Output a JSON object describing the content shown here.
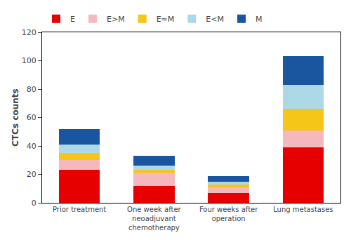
{
  "chart_data": {
    "type": "bar",
    "stacked": true,
    "categories": [
      "Prior treatment",
      "One week after\nneoadjuvant\nchemotherapy",
      "Four weeks after\noperation",
      "Lung metastases"
    ],
    "series": [
      {
        "name": "E",
        "color": "#e60000",
        "values": [
          23,
          12,
          7,
          39
        ]
      },
      {
        "name": "E>M",
        "color": "#f5b8be",
        "values": [
          7,
          9,
          4,
          12
        ]
      },
      {
        "name": "E≈M",
        "color": "#f5c518",
        "values": [
          5,
          2,
          2,
          15
        ]
      },
      {
        "name": "E<M",
        "color": "#add8e6",
        "values": [
          6,
          3,
          2,
          17
        ]
      },
      {
        "name": "M",
        "color": "#1a56a0",
        "values": [
          11,
          7,
          4,
          20
        ]
      }
    ],
    "ylabel": "CTCs counts",
    "ylim": [
      0,
      120
    ],
    "yticks": [
      0,
      20,
      40,
      60,
      80,
      100,
      120
    ],
    "grid": false,
    "legend": "upper left"
  }
}
